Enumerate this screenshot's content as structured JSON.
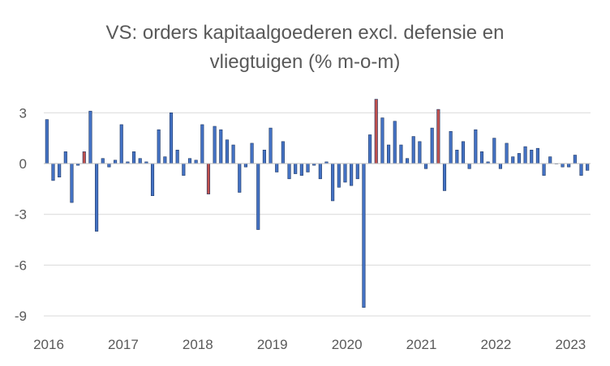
{
  "chart_data": {
    "type": "bar",
    "title_lines": [
      "VS: orders kapitaalgoederen excl. defensie en",
      "vliegtuigen (% m-o-m)"
    ],
    "xlabel": "",
    "ylabel": "",
    "ylim": [
      -9.3,
      3.8
    ],
    "yticks": [
      3,
      0,
      -3,
      -6,
      -9
    ],
    "ytick_labels": [
      "3",
      "0",
      "-3",
      "-6",
      "-9"
    ],
    "xtick_labels": [
      "2016",
      "2017",
      "2018",
      "2019",
      "2020",
      "2021",
      "2022",
      "2023"
    ],
    "grid": "horizontal",
    "legend": "none",
    "colors": {
      "default": "#4472C4",
      "highlight": "#C0504D",
      "edge": "#1F3864",
      "grid": "#D9D9D9",
      "axis": "#BFBFBF",
      "text": "#595959"
    },
    "start": "2016-01",
    "series": [
      {
        "name": "% m-o-m",
        "values": [
          2.6,
          -1.0,
          -0.8,
          0.7,
          -2.3,
          -0.1,
          0.7,
          3.1,
          -4.0,
          0.3,
          -0.2,
          0.2,
          2.3,
          0.1,
          0.7,
          0.3,
          0.1,
          -1.9,
          2.0,
          0.4,
          3.0,
          0.8,
          -0.7,
          0.3,
          0.2,
          2.3,
          -1.8,
          2.2,
          2.0,
          1.4,
          1.1,
          -1.7,
          -0.2,
          1.2,
          -3.9,
          0.8,
          2.1,
          -0.5,
          1.3,
          -0.9,
          -0.6,
          -0.7,
          -0.5,
          -0.1,
          -0.9,
          0.1,
          -2.2,
          -1.4,
          -1.1,
          -1.3,
          -0.9,
          -8.5,
          1.7,
          3.8,
          2.7,
          1.1,
          2.5,
          1.1,
          0.3,
          1.6,
          1.3,
          -0.3,
          2.1,
          3.2,
          -1.6,
          1.9,
          0.8,
          1.3,
          -0.3,
          2.0,
          0.7,
          0.1,
          1.5,
          -0.3,
          1.2,
          0.4,
          0.6,
          1.0,
          0.8,
          0.9,
          -0.7,
          0.4,
          0.0,
          -0.2,
          -0.2,
          0.5,
          -0.7,
          -0.4
        ],
        "highlight_months": [
          "2016-07",
          "2018-03",
          "2020-06",
          "2021-04"
        ]
      }
    ]
  }
}
